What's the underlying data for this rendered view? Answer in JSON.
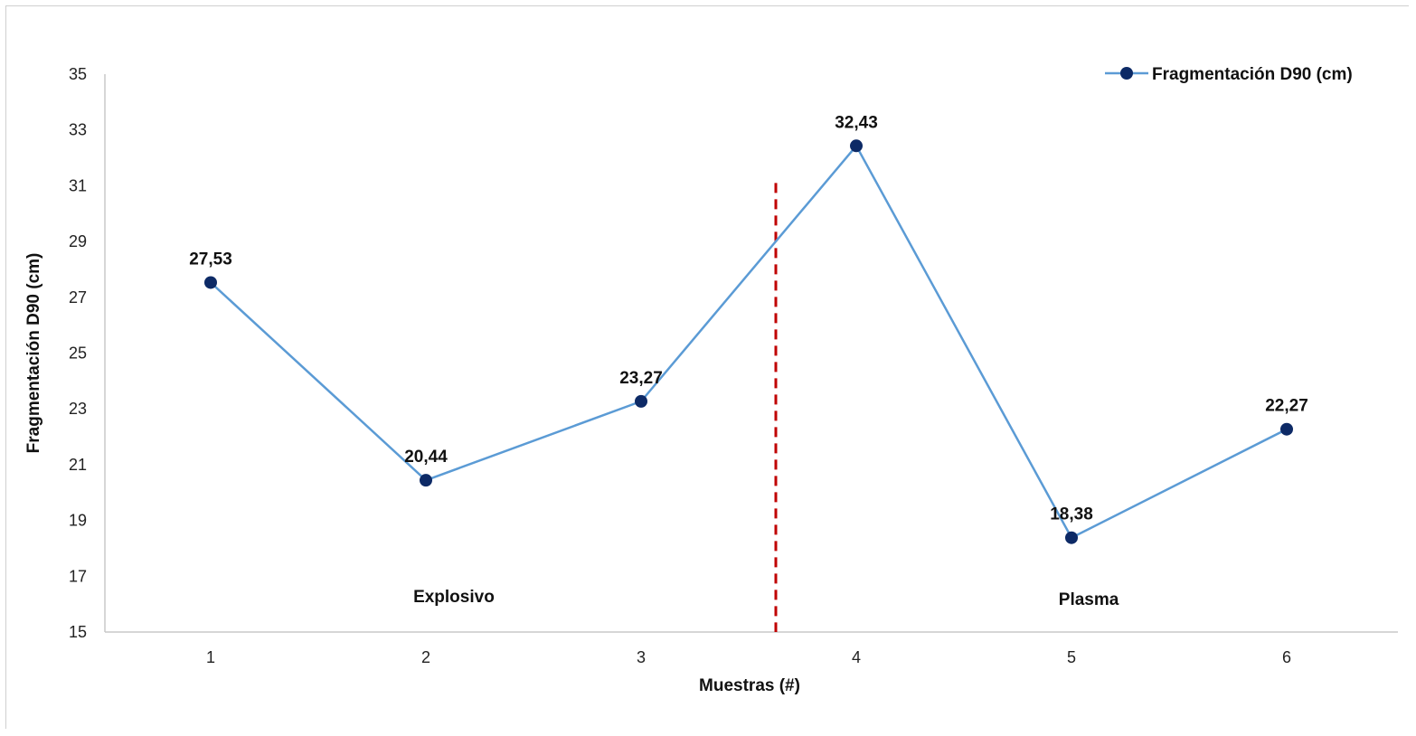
{
  "chart_data": {
    "type": "line",
    "xlabel": "Muestras (#)",
    "ylabel": "Fragmentación D90 (cm)",
    "categories": [
      "1",
      "2",
      "3",
      "4",
      "5",
      "6"
    ],
    "ylim": [
      15,
      35
    ],
    "y_ticks": [
      "15",
      "17",
      "19",
      "21",
      "23",
      "25",
      "27",
      "29",
      "31",
      "33",
      "35"
    ],
    "series": [
      {
        "name": "Fragmentación D90 (cm)",
        "values": [
          27.53,
          20.44,
          23.27,
          32.43,
          18.38,
          22.27
        ],
        "labels": [
          "27,53",
          "20,44",
          "23,27",
          "32,43",
          "18,38",
          "22,27"
        ],
        "line_color": "#5b9bd5",
        "marker_color": "#0d2a66"
      }
    ],
    "divider": {
      "between": [
        3,
        4
      ],
      "color": "#c00000",
      "style": "dashed"
    },
    "annotations": [
      {
        "text": "Explosivo",
        "x": 2.13,
        "y": 16.3
      },
      {
        "text": "Plasma",
        "x": 5.08,
        "y": 16.2
      }
    ],
    "legend_position": "top-right",
    "grid": false
  }
}
